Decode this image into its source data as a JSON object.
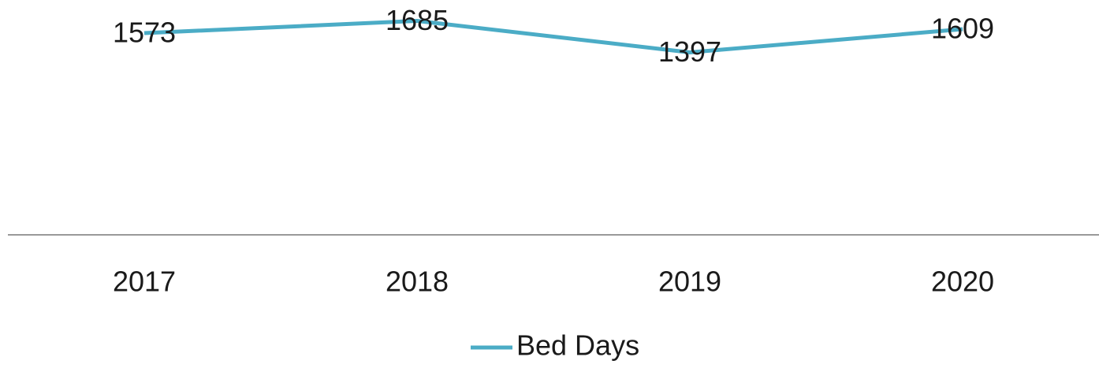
{
  "chart_data": {
    "type": "line",
    "categories": [
      "2017",
      "2018",
      "2019",
      "2020"
    ],
    "series": [
      {
        "name": "Bed Days",
        "color": "#4bacc6",
        "values": [
          1573,
          1685,
          1397,
          1609
        ]
      }
    ],
    "ylim": [
      -270,
      1800
    ],
    "legend": "bottom"
  }
}
